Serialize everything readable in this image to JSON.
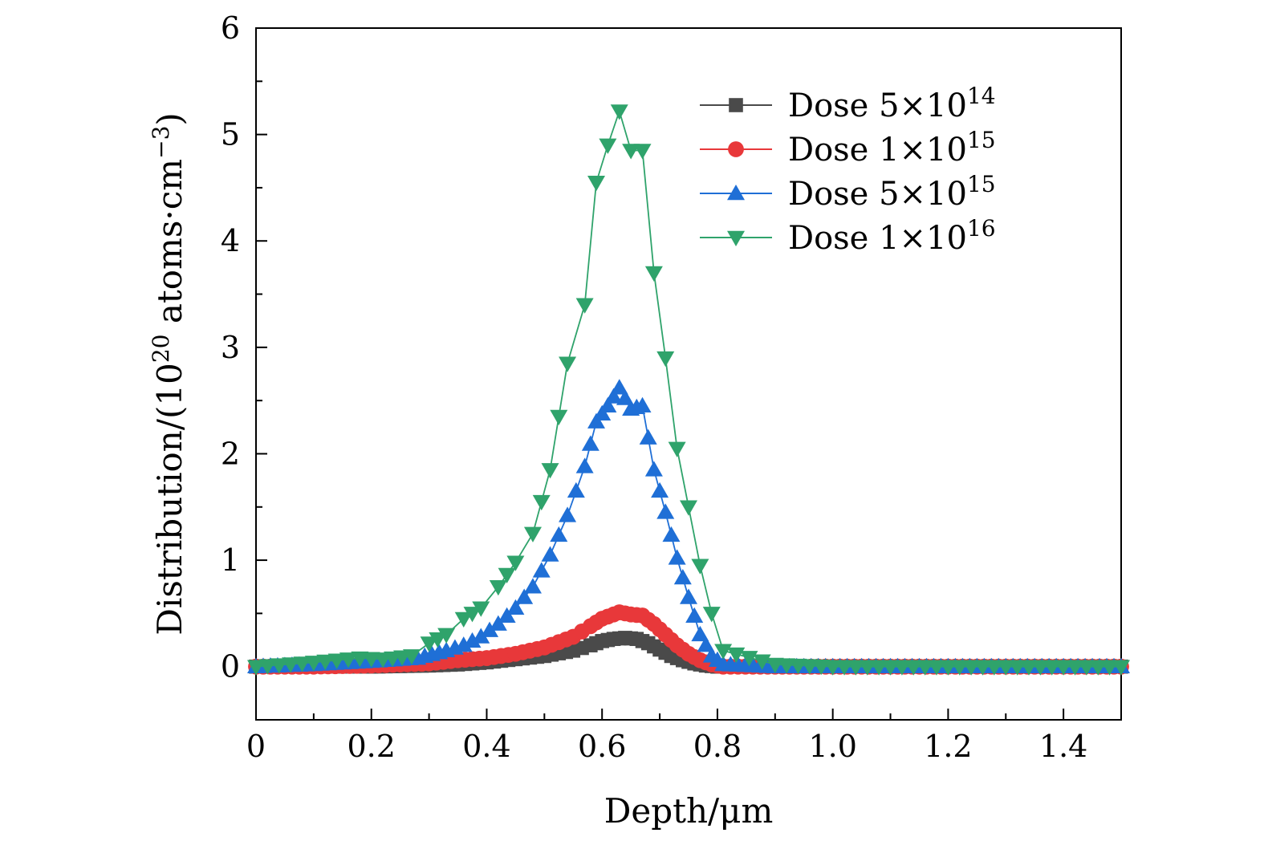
{
  "chart_data": {
    "type": "line",
    "title": "",
    "xlabel": "Depth/μm",
    "ylabel_parts": {
      "prefix": "Distribution/(10",
      "exp": "20",
      "middle": " atoms·cm",
      "exp2": "−3",
      "suffix": ")"
    },
    "xlim": [
      0,
      1.5
    ],
    "ylim": [
      -0.5,
      6
    ],
    "xticks": [
      0,
      0.2,
      0.4,
      0.6,
      0.8,
      1.0,
      1.2,
      1.4
    ],
    "xtick_labels": [
      "0",
      "0.2",
      "0.4",
      "0.6",
      "0.8",
      "1.0",
      "1.2",
      "1.4"
    ],
    "yticks": [
      0,
      1,
      2,
      3,
      4,
      5,
      6
    ],
    "ytick_labels": [
      "0",
      "1",
      "2",
      "3",
      "4",
      "5",
      "6"
    ],
    "grid": false,
    "legend_position": "top-right",
    "series": [
      {
        "name_prefix": "Dose 5×10",
        "name_exp": "14",
        "color": "#4a4a4a",
        "marker": "square",
        "x": [
          0.0,
          0.1,
          0.2,
          0.3,
          0.35,
          0.4,
          0.45,
          0.5,
          0.55,
          0.58,
          0.6,
          0.62,
          0.64,
          0.66,
          0.68,
          0.7,
          0.72,
          0.74,
          0.76,
          0.78,
          0.8,
          0.82,
          0.9,
          1.0,
          1.2,
          1.4,
          1.5
        ],
        "y": [
          0.0,
          0.0,
          0.0,
          0.01,
          0.02,
          0.04,
          0.07,
          0.1,
          0.15,
          0.2,
          0.24,
          0.26,
          0.27,
          0.26,
          0.22,
          0.16,
          0.1,
          0.06,
          0.03,
          0.01,
          0.0,
          0.0,
          0.0,
          0.0,
          0.0,
          0.0,
          0.0
        ]
      },
      {
        "name_prefix": "Dose 1×10",
        "name_exp": "15",
        "color": "#e8383a",
        "marker": "circle",
        "x": [
          0.0,
          0.1,
          0.2,
          0.3,
          0.35,
          0.4,
          0.45,
          0.5,
          0.55,
          0.58,
          0.6,
          0.62,
          0.63,
          0.65,
          0.67,
          0.69,
          0.71,
          0.73,
          0.75,
          0.77,
          0.79,
          0.81,
          0.9,
          1.0,
          1.2,
          1.4,
          1.5
        ],
        "y": [
          0.0,
          0.0,
          0.01,
          0.03,
          0.06,
          0.08,
          0.12,
          0.18,
          0.28,
          0.38,
          0.45,
          0.49,
          0.51,
          0.49,
          0.48,
          0.4,
          0.3,
          0.2,
          0.12,
          0.06,
          0.02,
          0.0,
          0.0,
          0.0,
          0.0,
          0.0,
          0.0
        ]
      },
      {
        "name_prefix": "Dose 5×10",
        "name_exp": "15",
        "color": "#1f6fd6",
        "marker": "triangle-up",
        "x": [
          0.0,
          0.1,
          0.2,
          0.28,
          0.33,
          0.36,
          0.39,
          0.42,
          0.45,
          0.48,
          0.51,
          0.54,
          0.57,
          0.59,
          0.61,
          0.63,
          0.65,
          0.67,
          0.69,
          0.71,
          0.73,
          0.75,
          0.77,
          0.79,
          0.81,
          0.9,
          1.0,
          1.2,
          1.4,
          1.5
        ],
        "y": [
          0.0,
          0.02,
          0.05,
          0.08,
          0.15,
          0.2,
          0.28,
          0.4,
          0.55,
          0.75,
          1.05,
          1.42,
          1.88,
          2.3,
          2.45,
          2.62,
          2.42,
          2.45,
          1.85,
          1.45,
          1.02,
          0.65,
          0.3,
          0.1,
          0.02,
          0.0,
          0.0,
          0.0,
          0.0,
          0.0
        ]
      },
      {
        "name_prefix": "Dose 1×10",
        "name_exp": "16",
        "color": "#2fa36b",
        "marker": "triangle-down",
        "x": [
          0.0,
          0.1,
          0.18,
          0.22,
          0.27,
          0.3,
          0.33,
          0.36,
          0.39,
          0.42,
          0.45,
          0.48,
          0.51,
          0.54,
          0.57,
          0.59,
          0.61,
          0.63,
          0.65,
          0.67,
          0.69,
          0.71,
          0.73,
          0.75,
          0.77,
          0.79,
          0.81,
          0.9,
          1.0,
          1.2,
          1.4,
          1.5
        ],
        "y": [
          0.0,
          0.04,
          0.08,
          0.07,
          0.1,
          0.22,
          0.3,
          0.45,
          0.55,
          0.75,
          0.98,
          1.25,
          1.85,
          2.85,
          3.4,
          4.55,
          4.9,
          5.22,
          4.85,
          4.85,
          3.7,
          2.9,
          2.05,
          1.5,
          0.95,
          0.5,
          0.15,
          0.02,
          0.0,
          0.0,
          0.0,
          0.0
        ]
      }
    ]
  }
}
